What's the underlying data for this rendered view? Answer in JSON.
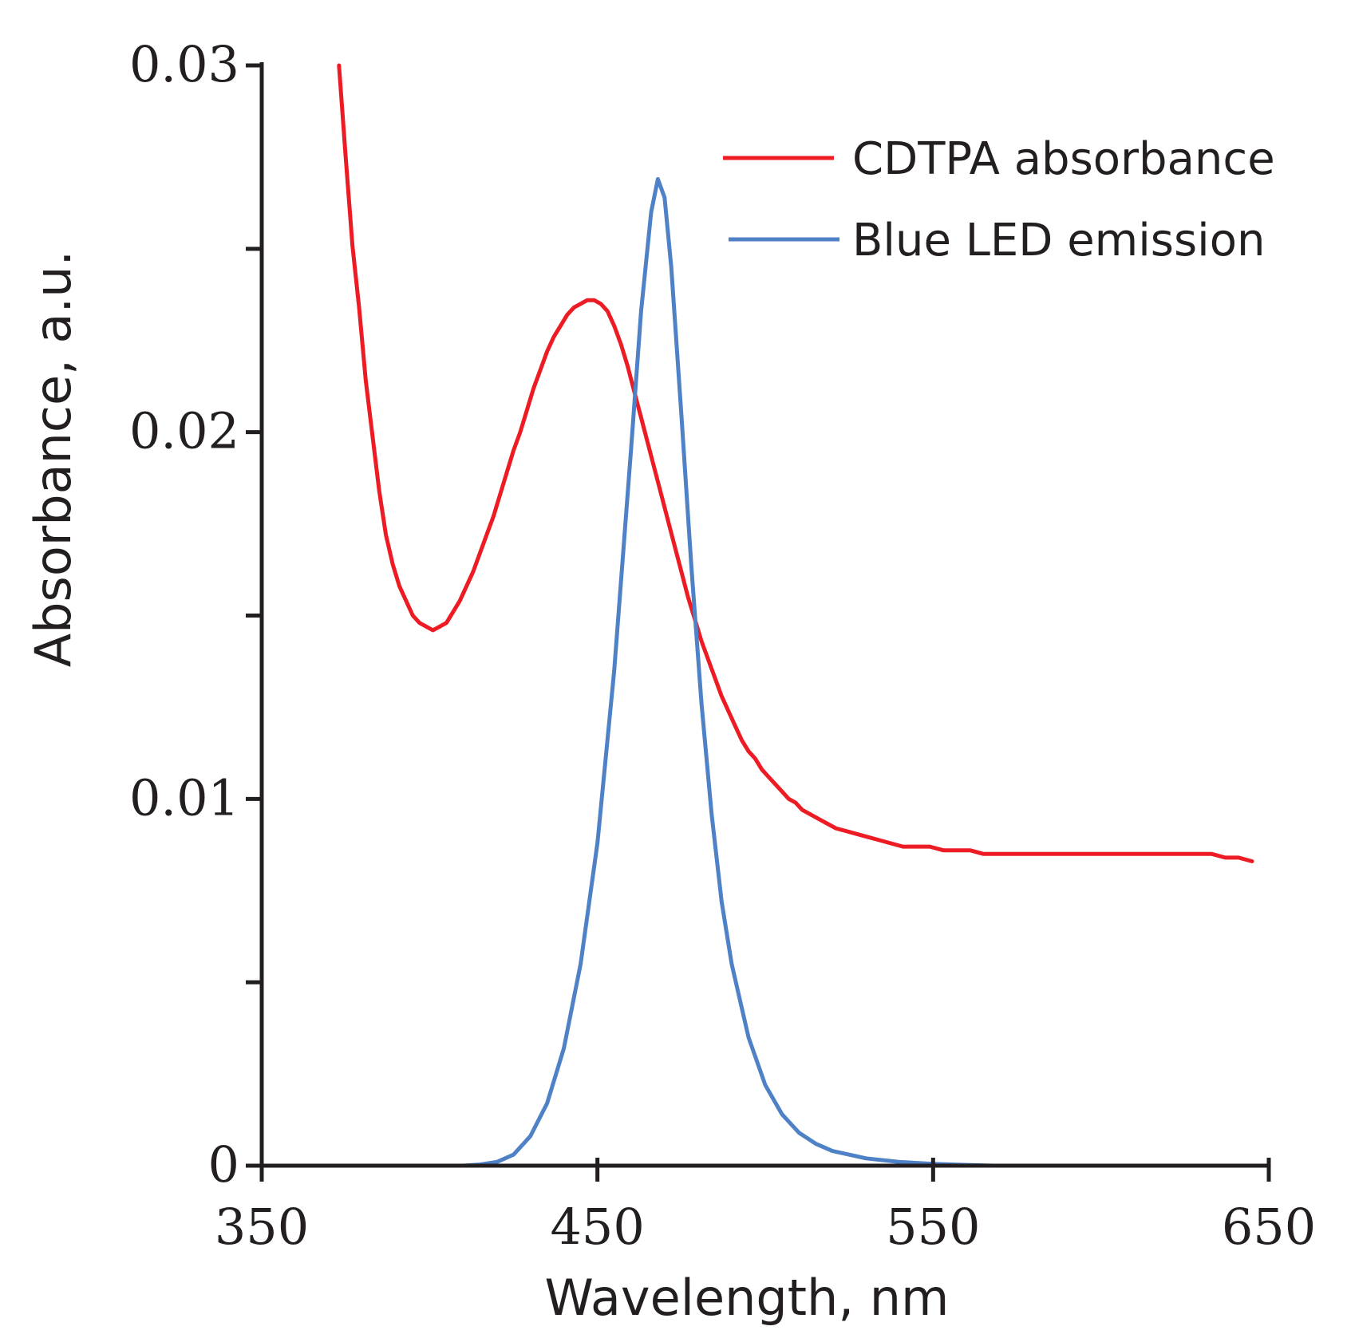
{
  "chart_data": {
    "type": "line",
    "title": "",
    "xlabel": "Wavelength, nm",
    "ylabel": "Absorbance, a.u.",
    "xlim": [
      350,
      650
    ],
    "ylim": [
      0,
      0.03
    ],
    "grid": false,
    "x_ticks": [
      {
        "value": 350,
        "label": "350"
      },
      {
        "value": 450,
        "label": "450"
      },
      {
        "value": 550,
        "label": "550"
      },
      {
        "value": 650,
        "label": "650"
      }
    ],
    "y_ticks": [
      {
        "value": 0,
        "label": "0"
      },
      {
        "value": 0.005,
        "label": ""
      },
      {
        "value": 0.01,
        "label": "0.01"
      },
      {
        "value": 0.015,
        "label": ""
      },
      {
        "value": 0.02,
        "label": "0.02"
      },
      {
        "value": 0.025,
        "label": ""
      },
      {
        "value": 0.03,
        "label": "0.03"
      }
    ],
    "legend_position": "top-right",
    "series": [
      {
        "name": "CDTPA absorbance",
        "color": "#ed1c24",
        "x": [
          373,
          375,
          377,
          379,
          381,
          383,
          385,
          387,
          389,
          391,
          393,
          395,
          397,
          399,
          401,
          403,
          405,
          407,
          409,
          411,
          413,
          415,
          417,
          419,
          421,
          423,
          425,
          427,
          429,
          431,
          433,
          435,
          437,
          439,
          441,
          443,
          445,
          447,
          449,
          451,
          453,
          455,
          457,
          459,
          461,
          463,
          465,
          467,
          469,
          471,
          473,
          475,
          477,
          479,
          481,
          483,
          485,
          487,
          489,
          491,
          493,
          495,
          497,
          499,
          501,
          503,
          505,
          507,
          509,
          511,
          513,
          515,
          517,
          519,
          521,
          525,
          529,
          533,
          537,
          541,
          545,
          549,
          553,
          557,
          561,
          565,
          569,
          573,
          577,
          581,
          585,
          589,
          593,
          597,
          601,
          605,
          609,
          613,
          617,
          621,
          625,
          629,
          633,
          637,
          641,
          645
        ],
        "values": [
          0.03,
          0.0275,
          0.0251,
          0.0234,
          0.0214,
          0.0199,
          0.0184,
          0.0172,
          0.0164,
          0.0158,
          0.0154,
          0.015,
          0.0148,
          0.0147,
          0.0146,
          0.0147,
          0.0148,
          0.0151,
          0.0154,
          0.0158,
          0.0162,
          0.0167,
          0.0172,
          0.0177,
          0.0183,
          0.0189,
          0.0195,
          0.02,
          0.0206,
          0.0212,
          0.0217,
          0.0222,
          0.0226,
          0.0229,
          0.0232,
          0.0234,
          0.0235,
          0.0236,
          0.0236,
          0.0235,
          0.0233,
          0.0229,
          0.0224,
          0.0218,
          0.0211,
          0.0204,
          0.0197,
          0.019,
          0.0183,
          0.0176,
          0.0169,
          0.0162,
          0.0155,
          0.0149,
          0.0143,
          0.0138,
          0.0133,
          0.0128,
          0.0124,
          0.012,
          0.0116,
          0.0113,
          0.0111,
          0.0108,
          0.0106,
          0.0104,
          0.0102,
          0.01,
          0.0099,
          0.0097,
          0.0096,
          0.0095,
          0.0094,
          0.0093,
          0.0092,
          0.0091,
          0.009,
          0.0089,
          0.0088,
          0.0087,
          0.0087,
          0.0087,
          0.0086,
          0.0086,
          0.0086,
          0.0085,
          0.0085,
          0.0085,
          0.0085,
          0.0085,
          0.0085,
          0.0085,
          0.0085,
          0.0085,
          0.0085,
          0.0085,
          0.0085,
          0.0085,
          0.0085,
          0.0085,
          0.0085,
          0.0085,
          0.0085,
          0.0084,
          0.0084,
          0.0083
        ]
      },
      {
        "name": "Blue LED emission",
        "color": "#4f81c6",
        "x": [
          380,
          390,
          400,
          410,
          415,
          420,
          425,
          430,
          435,
          440,
          445,
          450,
          455,
          460,
          463,
          466,
          468,
          470,
          472,
          475,
          478,
          481,
          484,
          487,
          490,
          495,
          500,
          505,
          510,
          515,
          520,
          525,
          530,
          540,
          550,
          560,
          568
        ],
        "values": [
          0,
          0,
          0,
          0,
          3e-05,
          0.0001,
          0.0003,
          0.0008,
          0.0017,
          0.0032,
          0.0055,
          0.0088,
          0.0135,
          0.0195,
          0.0233,
          0.026,
          0.0269,
          0.0264,
          0.0245,
          0.0205,
          0.0163,
          0.0126,
          0.0096,
          0.0072,
          0.0055,
          0.0035,
          0.0022,
          0.0014,
          0.0009,
          0.0006,
          0.0004,
          0.0003,
          0.0002,
          0.0001,
          5e-05,
          2e-05,
          0
        ]
      }
    ]
  }
}
